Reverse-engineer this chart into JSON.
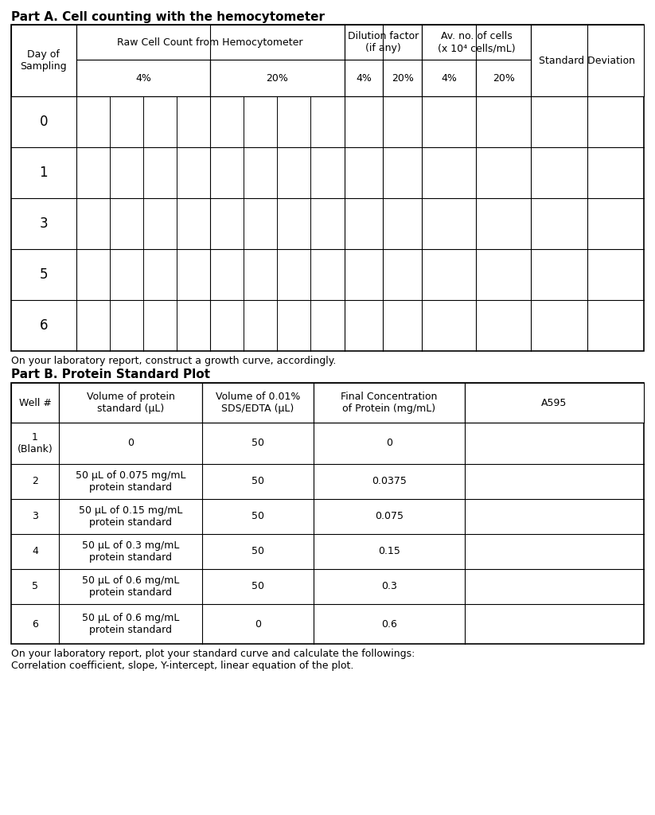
{
  "partA_title": "Part A. Cell counting with the hemocytometer",
  "partB_title": "Part B. Protein Standard Plot",
  "partA_note": "On your laboratory report, construct a growth curve, accordingly.",
  "partB_note": "On your laboratory report, plot your standard curve and calculate the followings:\nCorrelation coefficient, slope, Y-intercept, linear equation of the plot.",
  "background_color": "#ffffff",
  "title_fontsize": 11,
  "header_fontsize": 9,
  "cell_fontsize": 9,
  "note_fontsize": 9,
  "partA_days": [
    "0",
    "1",
    "3",
    "5",
    "6"
  ],
  "partB_headers": [
    "Well #",
    "Volume of protein\nstandard (μL)",
    "Volume of 0.01%\nSDS/EDTA (μL)",
    "Final Concentration\nof Protein (mg/mL)",
    "A595"
  ],
  "partB_rows": [
    [
      "1\n(Blank)",
      "0",
      "50",
      "0",
      ""
    ],
    [
      "2",
      "50 μL of 0.075 mg/mL\nprotein standard",
      "50",
      "0.0375",
      ""
    ],
    [
      "3",
      "50 μL of 0.15 mg/mL\nprotein standard",
      "50",
      "0.075",
      ""
    ],
    [
      "4",
      "50 μL of 0.3 mg/mL\nprotein standard",
      "50",
      "0.15",
      ""
    ],
    [
      "5",
      "50 μL of 0.6 mg/mL\nprotein standard",
      "50",
      "0.3",
      ""
    ],
    [
      "6",
      "50 μL of 0.6 mg/mL\nprotein standard",
      "0",
      "0.6",
      ""
    ]
  ]
}
